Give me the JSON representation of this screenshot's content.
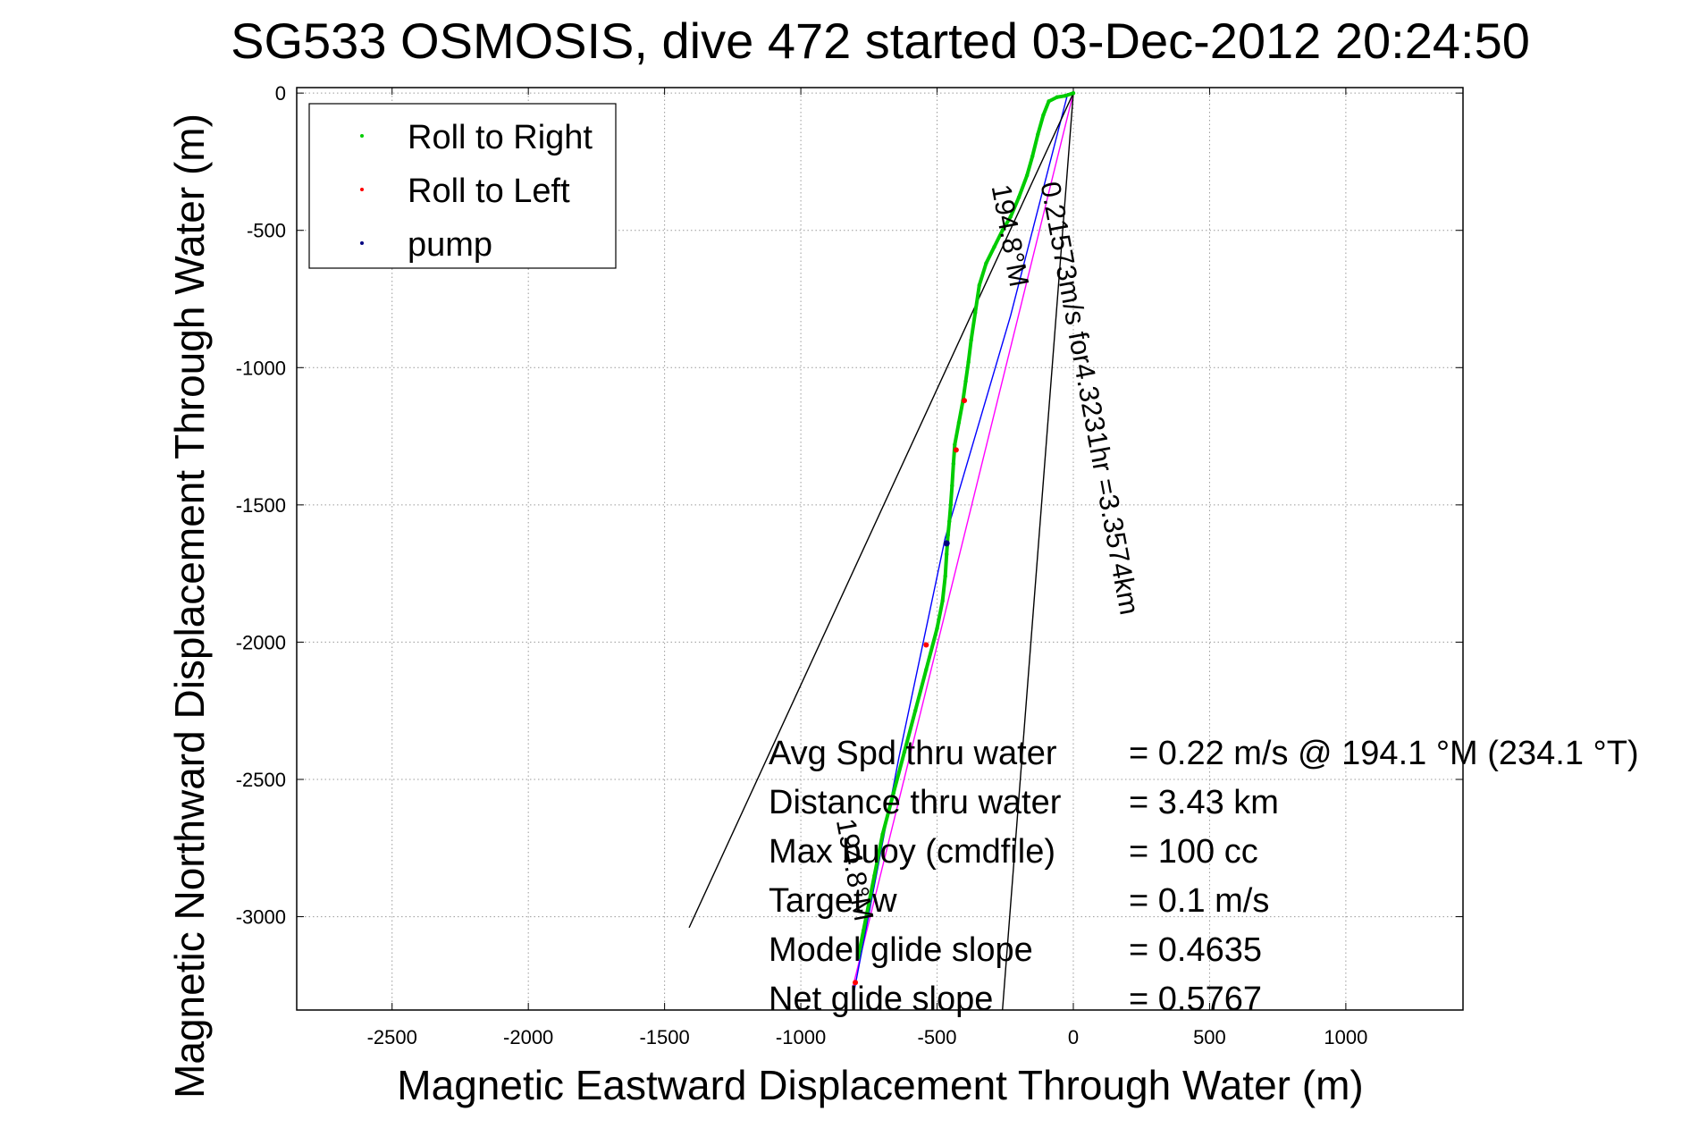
{
  "chart_data": {
    "type": "scatter",
    "title": "SG533 OSMOSIS, dive 472 started 03-Dec-2012 20:24:50",
    "xlabel": "Magnetic Eastward Displacement Through Water (m)",
    "ylabel": "Magnetic Northward Displacement Through Water (m)",
    "xlim": [
      -2850,
      1430
    ],
    "ylim": [
      -3340,
      20
    ],
    "x_ticks": [
      -2500,
      -2000,
      -1500,
      -1000,
      -500,
      0,
      500,
      1000
    ],
    "y_ticks": [
      0,
      -500,
      -1000,
      -1500,
      -2000,
      -2500,
      -3000
    ],
    "grid": true,
    "legend_position": "top-left",
    "legend": [
      {
        "label": "Roll to Right",
        "color": "#00cc00"
      },
      {
        "label": "Roll to Left",
        "color": "#ff0000"
      },
      {
        "label": "pump",
        "color": "#000080"
      }
    ],
    "series": [
      {
        "name": "Roll to Right",
        "color": "#00cc00",
        "x": [
          0,
          -30,
          -60,
          -90,
          -110,
          -130,
          -150,
          -170,
          -200,
          -230,
          -260,
          -290,
          -320,
          -345,
          -360,
          -375,
          -385,
          -395,
          -405,
          -420,
          -435,
          -440,
          -445,
          -450,
          -455,
          -460,
          -465,
          -470,
          -480,
          -500,
          -540,
          -580,
          -620,
          -660,
          -700,
          -730,
          -750,
          -770,
          -790
        ],
        "y": [
          0,
          -10,
          -15,
          -30,
          -80,
          -150,
          -230,
          -300,
          -380,
          -450,
          -500,
          -560,
          -620,
          -700,
          -800,
          -900,
          -980,
          -1050,
          -1120,
          -1200,
          -1280,
          -1350,
          -1430,
          -1500,
          -1560,
          -1610,
          -1680,
          -1760,
          -1850,
          -1950,
          -2100,
          -2250,
          -2400,
          -2550,
          -2700,
          -2850,
          -2950,
          -3050,
          -3150
        ]
      },
      {
        "name": "Roll to Left",
        "color": "#ff0000",
        "x": [
          -400,
          -430,
          -540,
          -800
        ],
        "y": [
          -1120,
          -1300,
          -2010,
          -3240
        ]
      },
      {
        "name": "pump",
        "color": "#000080",
        "x": [
          -465
        ],
        "y": [
          -1640
        ]
      }
    ],
    "lines": [
      {
        "color": "#ff00ff",
        "x": [
          0,
          -810
        ],
        "y": [
          0,
          -3260
        ]
      },
      {
        "color": "#0000ff",
        "x": [
          -20,
          -230,
          -470,
          -640,
          -810
        ],
        "y": [
          0,
          -810,
          -1620,
          -2420,
          -3300
        ]
      },
      {
        "color": "#000000",
        "x": [
          0,
          -1410
        ],
        "y": [
          0,
          -3040
        ]
      },
      {
        "color": "#000000",
        "x": [
          0,
          -260
        ],
        "y": [
          0,
          -3340
        ]
      }
    ],
    "annotations": [
      {
        "text": "0.21573m/s for4.3231hr =3.3574km",
        "x": -120,
        "y": -330,
        "angle_deg": 79.5
      },
      {
        "text": "194.8°M",
        "x": -300,
        "y": -340,
        "angle_deg": 79.5
      },
      {
        "text": "194.8°M",
        "x": -870,
        "y": -2650,
        "angle_deg": 79.5
      }
    ],
    "stats": [
      {
        "label": "Avg Spd thru water",
        "value": "=  0.22 m/s @ 194.1 °M (234.1 °T)"
      },
      {
        "label": "Distance thru water",
        "value": "=  3.43 km"
      },
      {
        "label": "Max buoy (cmdfile)",
        "value": "= 100 cc"
      },
      {
        "label": "Target w",
        "value": "= 0.1 m/s"
      },
      {
        "label": "Model glide slope",
        "value": "= 0.4635"
      },
      {
        "label": "Net glide slope",
        "value": "= 0.5767"
      }
    ]
  }
}
